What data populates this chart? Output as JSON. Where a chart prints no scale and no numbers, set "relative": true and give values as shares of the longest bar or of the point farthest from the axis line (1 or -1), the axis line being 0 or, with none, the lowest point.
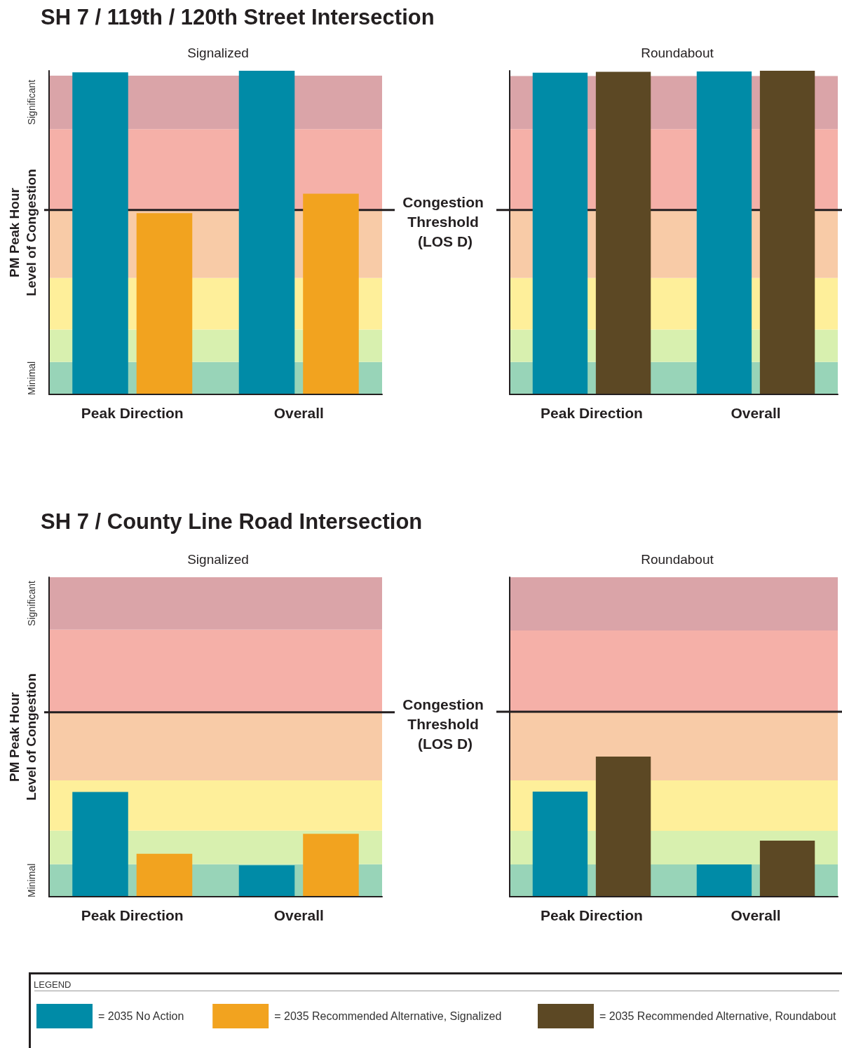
{
  "chart_data": [
    {
      "type": "bar",
      "title": "SH 7 / 119th / 120th Street Intersection",
      "subtitle": "Signalized",
      "ylabel": "PM Peak Hour\nLevel of Congestion",
      "categories": [
        "Peak Direction",
        "Overall"
      ],
      "relative": true,
      "series": [
        {
          "color": "#008ba7",
          "values": [
            0.995,
            1
          ]
        },
        {
          "color": "#f2a31f",
          "values": [
            0.56,
            0.62
          ]
        }
      ],
      "bands": [
        {
          "axis": "y",
          "from": 0,
          "to": 0.1,
          "color": "#98d4b8",
          "label": "Minimal"
        },
        {
          "axis": "y",
          "from": 0.1,
          "to": 0.2,
          "color": "#d8f0af"
        },
        {
          "axis": "y",
          "from": 0.2,
          "to": 0.36,
          "color": "#feef9a"
        },
        {
          "axis": "y",
          "from": 0.36,
          "to": 0.57,
          "color": "#f8cba7"
        },
        {
          "axis": "y",
          "from": 0.57,
          "to": 0.82,
          "color": "#f5b0a8"
        },
        {
          "axis": "y",
          "from": 0.82,
          "to": 0.985,
          "color": "#daa4a8",
          "label": "Significant"
        }
      ],
      "ref_lines": [
        {
          "axis": "y",
          "value": 0.57,
          "label": "Congestion Threshold (LOS D)",
          "color": "#231f20"
        }
      ]
    },
    {
      "type": "bar",
      "subtitle": "Roundabout",
      "categories": [
        "Peak Direction",
        "Overall"
      ],
      "relative": true,
      "series": [
        {
          "color": "#008ba7",
          "values": [
            0.994,
            0.998
          ]
        },
        {
          "color": "#5c4824",
          "values": [
            0.997,
            1
          ]
        }
      ],
      "bands": [
        {
          "axis": "y",
          "from": 0,
          "to": 0.1,
          "color": "#98d4b8"
        },
        {
          "axis": "y",
          "from": 0.1,
          "to": 0.2,
          "color": "#d8f0af"
        },
        {
          "axis": "y",
          "from": 0.2,
          "to": 0.36,
          "color": "#feef9a"
        },
        {
          "axis": "y",
          "from": 0.36,
          "to": 0.57,
          "color": "#f8cba7"
        },
        {
          "axis": "y",
          "from": 0.57,
          "to": 0.82,
          "color": "#f5b0a8"
        },
        {
          "axis": "y",
          "from": 0.82,
          "to": 0.984,
          "color": "#daa4a8"
        }
      ],
      "ref_lines": [
        {
          "axis": "y",
          "value": 0.57,
          "color": "#231f20"
        }
      ]
    },
    {
      "type": "bar",
      "title": "SH 7 / County Line Road Intersection",
      "subtitle": "Signalized",
      "ylabel": "PM Peak Hour\nLevel of Congestion",
      "categories": [
        "Peak Direction",
        "Overall"
      ],
      "relative": true,
      "series": [
        {
          "name": "= 2035 No Action",
          "color": "#008ba7",
          "values": [
            1,
            0.3
          ]
        },
        {
          "name": "= 2035 Recommended Alternative, Signalized",
          "color": "#f2a31f",
          "values": [
            0.41,
            0.6
          ]
        }
      ],
      "bands": [
        {
          "axis": "y",
          "from": 0,
          "to": 0.31,
          "color": "#98d4b8",
          "label": "Minimal"
        },
        {
          "axis": "y",
          "from": 0.31,
          "to": 0.63,
          "color": "#d8f0af"
        },
        {
          "axis": "y",
          "from": 0.63,
          "to": 1.11,
          "color": "#feef9a"
        },
        {
          "axis": "y",
          "from": 1.11,
          "to": 1.76,
          "color": "#f8cba7"
        },
        {
          "axis": "y",
          "from": 1.76,
          "to": 2.55,
          "color": "#f5b0a8"
        },
        {
          "axis": "y",
          "from": 2.55,
          "to": 3.05,
          "color": "#daa4a8",
          "label": "Significant"
        }
      ],
      "ref_lines": [
        {
          "axis": "y",
          "value": 1.76,
          "label": "Congestion Threshold (LOS D)",
          "color": "#231f20"
        }
      ],
      "legend": "bottom",
      "legend_title": "LEGEND"
    },
    {
      "type": "bar",
      "subtitle": "Roundabout",
      "categories": [
        "Peak Direction",
        "Overall"
      ],
      "relative": true,
      "series": [
        {
          "color": "#008ba7",
          "values": [
            0.75,
            0.23
          ]
        },
        {
          "name": "= 2035 Recommended Alternative, Roundabout",
          "color": "#5c4824",
          "values": [
            1,
            0.4
          ]
        }
      ],
      "bands": [
        {
          "axis": "y",
          "from": 0,
          "to": 0.23,
          "color": "#98d4b8"
        },
        {
          "axis": "y",
          "from": 0.23,
          "to": 0.47,
          "color": "#d8f0af"
        },
        {
          "axis": "y",
          "from": 0.47,
          "to": 0.83,
          "color": "#feef9a"
        },
        {
          "axis": "y",
          "from": 0.83,
          "to": 1.32,
          "color": "#f8cba7"
        },
        {
          "axis": "y",
          "from": 1.32,
          "to": 1.9,
          "color": "#f5b0a8"
        },
        {
          "axis": "y",
          "from": 1.9,
          "to": 2.28,
          "color": "#daa4a8"
        }
      ],
      "ref_lines": [
        {
          "axis": "y",
          "value": 1.32,
          "color": "#231f20"
        }
      ],
      "legend": "bottom"
    }
  ]
}
